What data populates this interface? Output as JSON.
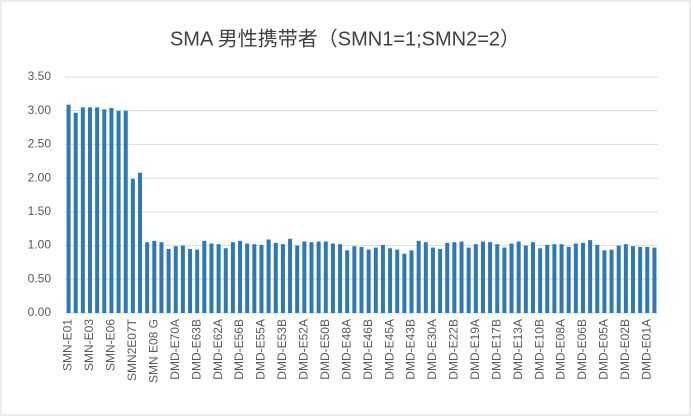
{
  "chart_data": {
    "type": "bar",
    "title": "SMA 男性携带者（SMN1=1;SMN2=2）",
    "categories": [
      "SMN-E01",
      null,
      null,
      "SMN-E03",
      null,
      null,
      "SMN-E06",
      null,
      null,
      "SMN2E07T",
      null,
      null,
      "SMN E08 G",
      null,
      null,
      "DMD-E70A",
      null,
      null,
      "DMD-E63B",
      null,
      null,
      "DMD-E62A",
      null,
      null,
      "DMD-E56B",
      null,
      null,
      "DMD-E55A",
      null,
      null,
      "DMD-E53B",
      null,
      null,
      "DMD-E52A",
      null,
      null,
      "DMD-E50B",
      null,
      null,
      "DMD-E48A",
      null,
      null,
      "DMD-E46B",
      null,
      null,
      "DMD-E45A",
      null,
      null,
      "DMD-E43B",
      null,
      null,
      "DMD-E30A",
      null,
      null,
      "DMD-E22B",
      null,
      null,
      "DMD-E19A",
      null,
      null,
      "DMD-E17B",
      null,
      null,
      "DMD-E13A",
      null,
      null,
      "DMD-E10B",
      null,
      null,
      "DMD-E08A",
      null,
      null,
      "DMD-E06B",
      null,
      null,
      "DMD-E05A",
      null,
      null,
      "DMD-E02B",
      null,
      null,
      "DMD-E01A",
      null
    ],
    "values": [
      3.09,
      2.97,
      3.05,
      3.05,
      3.05,
      3.02,
      3.04,
      3.0,
      3.0,
      1.99,
      2.08,
      1.05,
      1.07,
      1.05,
      0.95,
      0.99,
      1.0,
      0.95,
      0.94,
      1.07,
      1.03,
      1.02,
      0.96,
      1.05,
      1.07,
      1.03,
      1.02,
      1.01,
      1.09,
      1.04,
      1.02,
      1.1,
      1.0,
      1.06,
      1.05,
      1.06,
      1.06,
      1.03,
      1.02,
      0.93,
      0.99,
      0.98,
      0.94,
      0.97,
      1.01,
      0.96,
      0.94,
      0.88,
      0.93,
      1.07,
      1.05,
      0.97,
      0.95,
      1.04,
      1.05,
      1.06,
      0.97,
      1.02,
      1.06,
      1.05,
      1.02,
      0.97,
      1.03,
      1.06,
      1.0,
      1.05,
      0.96,
      1.01,
      1.02,
      1.02,
      0.98,
      1.03,
      1.04,
      1.08,
      1.01,
      0.93,
      0.94,
      1.0,
      1.02,
      0.99,
      0.98,
      0.98,
      0.97
    ],
    "color": "#2e78b7",
    "ylim": [
      0,
      3.5
    ],
    "yticks": [
      {
        "value": 0,
        "label": "0.00"
      },
      {
        "value": 0.5,
        "label": "0.50"
      },
      {
        "value": 1,
        "label": "1.00"
      },
      {
        "value": 1.5,
        "label": "1.50"
      },
      {
        "value": 2,
        "label": "2.00"
      },
      {
        "value": 2.5,
        "label": "2.50"
      },
      {
        "value": 3,
        "label": "3.00"
      },
      {
        "value": 3.5,
        "label": "3.50"
      }
    ],
    "grid": true
  }
}
